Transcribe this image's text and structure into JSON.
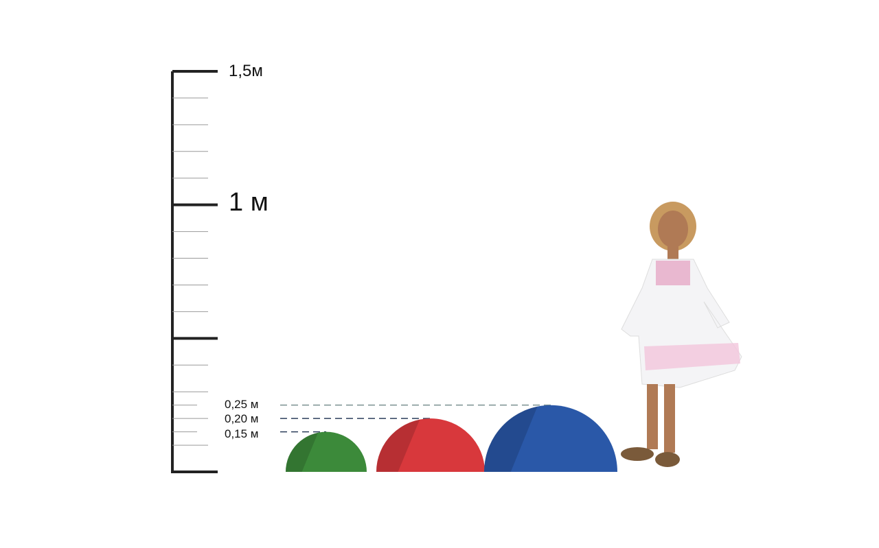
{
  "scale": {
    "label_top": "1,5м",
    "label_mid": "1 м",
    "max_m": 1.5,
    "major_ticks_m": [
      0,
      0.5,
      1,
      1.5
    ],
    "minor_step_m": 0.1
  },
  "domes": [
    {
      "height_label": "0,15 м",
      "height_m": 0.15,
      "color": "#3c8a3a"
    },
    {
      "height_label": "0,20 м",
      "height_m": 0.2,
      "color": "#d8383c"
    },
    {
      "height_label": "0,25 м",
      "height_m": 0.25,
      "color": "#2a58a8"
    }
  ]
}
